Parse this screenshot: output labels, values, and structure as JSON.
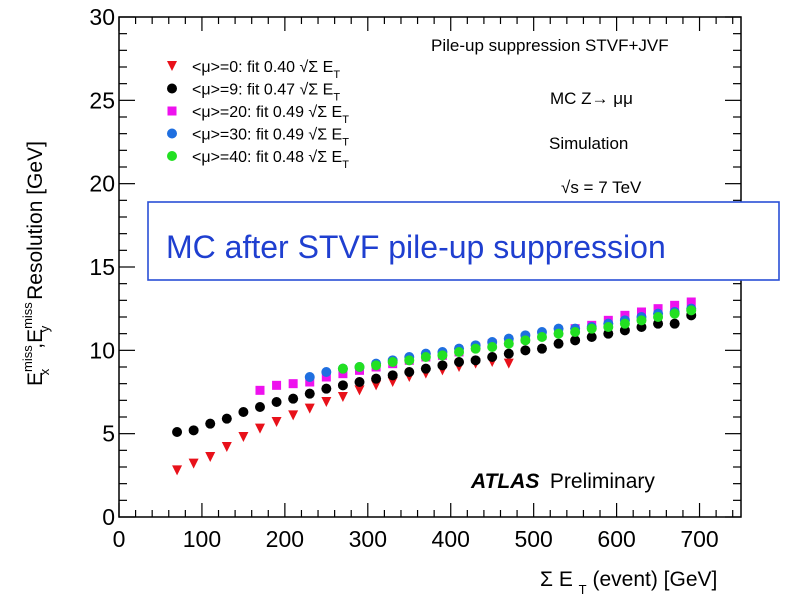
{
  "chart_data": {
    "type": "scatter",
    "xlabel_prefix": "Σ E",
    "xlabel_sub": "T",
    "xlabel_suffix": "(event) [GeV]",
    "ylabel": {
      "e1": "E",
      "e1_sup": "miss",
      "e1_sub": "x",
      "sep": ",",
      "e2": "E",
      "e2_sup": "miss",
      "e2_sub": "y",
      "rest": " Resolution [GeV]"
    },
    "xlim": [
      0,
      750
    ],
    "ylim": [
      0,
      30
    ],
    "x_ticks": [
      "0",
      "100",
      "200",
      "300",
      "400",
      "500",
      "600",
      "700"
    ],
    "y_ticks": [
      "0",
      "5",
      "10",
      "15",
      "20",
      "25",
      "30"
    ],
    "annotations": {
      "pileup": "Pile-up suppression STVF+JVF",
      "mc": "MC Z→ μμ",
      "simulation": "Simulation",
      "energy": "√s = 7 TeV",
      "boxed": "MC after STVF pile-up suppression",
      "atlas": "ATLAS",
      "preliminary": "Preliminary"
    },
    "legend_placement": "top-left",
    "series": [
      {
        "name": "<μ>=0: fit 0.40 √Σ E",
        "name_sub": "T",
        "marker": "triangle-down",
        "color": "#e8111a",
        "x": [
          70,
          90,
          110,
          130,
          150,
          170,
          190,
          210,
          230,
          250,
          270,
          290,
          310,
          330,
          350,
          370,
          390,
          410,
          430,
          450,
          470
        ],
        "y": [
          2.8,
          3.2,
          3.6,
          4.2,
          4.8,
          5.3,
          5.7,
          6.1,
          6.5,
          6.9,
          7.2,
          7.6,
          7.9,
          8.1,
          8.4,
          8.6,
          8.8,
          9.0,
          9.2,
          9.3,
          9.2
        ]
      },
      {
        "name": "<μ>=9: fit 0.47 √Σ E",
        "name_sub": "T",
        "marker": "circle",
        "color": "#000000",
        "x": [
          70,
          90,
          110,
          130,
          150,
          170,
          190,
          210,
          230,
          250,
          270,
          290,
          310,
          330,
          350,
          370,
          390,
          410,
          430,
          450,
          470,
          490,
          510,
          530,
          550,
          570,
          590,
          610,
          630,
          650,
          670,
          690
        ],
        "y": [
          5.1,
          5.2,
          5.6,
          5.9,
          6.3,
          6.6,
          6.9,
          7.1,
          7.4,
          7.7,
          7.9,
          8.1,
          8.3,
          8.5,
          8.7,
          8.9,
          9.1,
          9.3,
          9.4,
          9.6,
          9.8,
          10.0,
          10.1,
          10.4,
          10.6,
          10.8,
          11.0,
          11.2,
          11.4,
          11.6,
          11.6,
          12.1
        ]
      },
      {
        "name": "<μ>=20: fit 0.49 √Σ E",
        "name_sub": "T",
        "marker": "square",
        "color": "#ee11ee",
        "x": [
          170,
          190,
          210,
          230,
          250,
          270,
          290,
          310,
          330,
          350,
          370,
          390,
          410,
          430,
          450,
          470,
          490,
          510,
          530,
          550,
          570,
          590,
          610,
          630,
          650,
          670,
          690
        ],
        "y": [
          7.6,
          7.9,
          8.0,
          8.1,
          8.4,
          8.6,
          8.8,
          9.0,
          9.2,
          9.4,
          9.6,
          9.7,
          9.9,
          10.2,
          10.4,
          10.5,
          10.7,
          10.9,
          11.1,
          11.3,
          11.5,
          11.8,
          12.1,
          12.3,
          12.5,
          12.7,
          12.9
        ]
      },
      {
        "name": "<μ>=30: fit 0.49 √Σ E",
        "name_sub": "T",
        "marker": "circle",
        "color": "#1f6fe0",
        "x": [
          230,
          250,
          270,
          290,
          310,
          330,
          350,
          370,
          390,
          410,
          430,
          450,
          470,
          490,
          510,
          530,
          550,
          570,
          590,
          610,
          630,
          650,
          670,
          690
        ],
        "y": [
          8.4,
          8.7,
          8.9,
          9.0,
          9.2,
          9.4,
          9.6,
          9.8,
          9.9,
          10.1,
          10.3,
          10.5,
          10.7,
          10.9,
          11.1,
          11.3,
          11.3,
          11.4,
          11.6,
          11.8,
          12.0,
          12.2,
          12.3,
          12.5
        ]
      },
      {
        "name": "<μ>=40: fit 0.48 √Σ E",
        "name_sub": "T",
        "marker": "circle",
        "color": "#22e022",
        "x": [
          270,
          290,
          310,
          330,
          350,
          370,
          390,
          410,
          430,
          450,
          470,
          490,
          510,
          530,
          550,
          570,
          590,
          610,
          630,
          650,
          670,
          690
        ],
        "y": [
          8.9,
          9.0,
          9.1,
          9.3,
          9.4,
          9.6,
          9.7,
          9.9,
          10.1,
          10.2,
          10.4,
          10.6,
          10.8,
          11.0,
          11.1,
          11.3,
          11.4,
          11.6,
          11.8,
          12.0,
          12.2,
          12.4
        ]
      }
    ]
  }
}
